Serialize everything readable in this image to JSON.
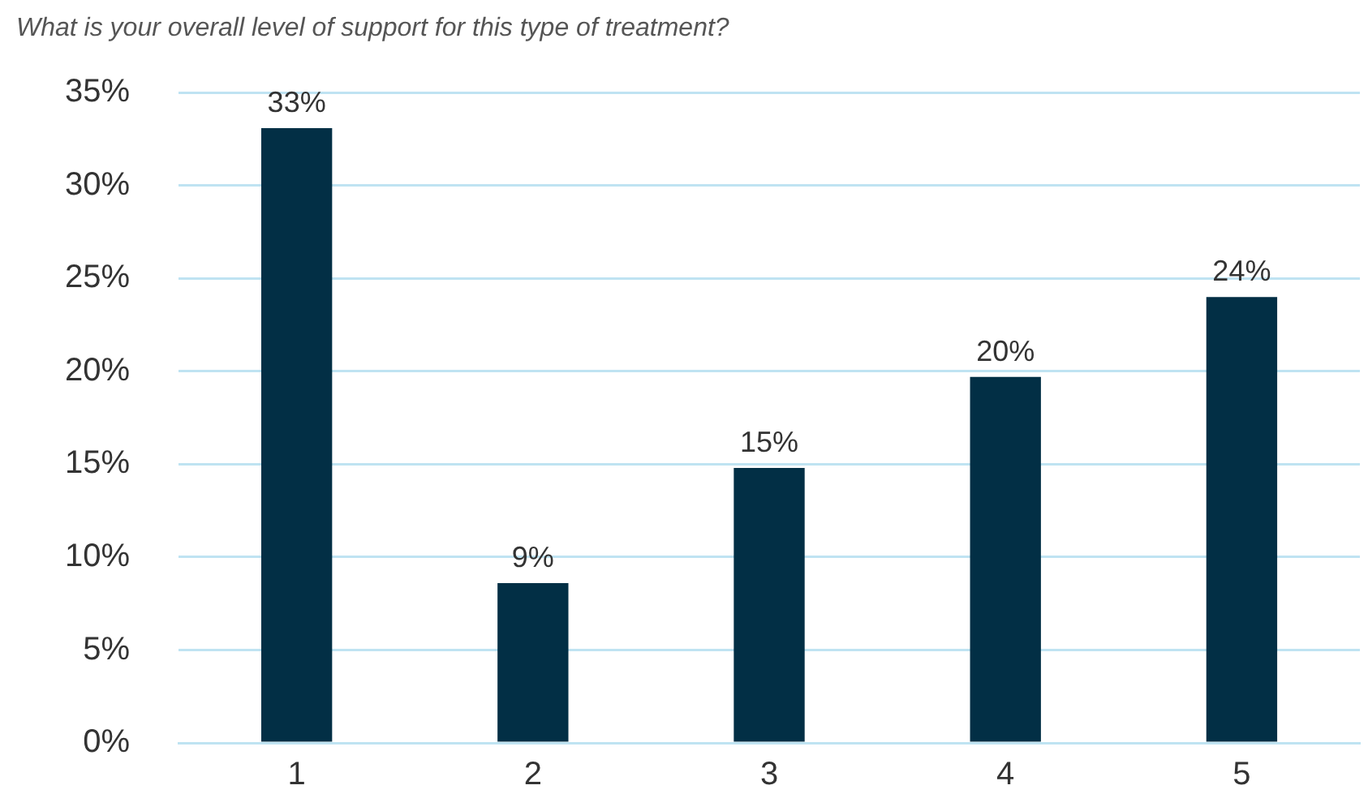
{
  "chart_data": {
    "type": "bar",
    "title": "What is your overall level of support for this type of treatment?",
    "categories": [
      "1",
      "2",
      "3",
      "4",
      "5"
    ],
    "values": [
      33.1,
      8.6,
      14.8,
      19.7,
      24
    ],
    "value_labels": [
      "33%",
      "9%",
      "15%",
      "20%",
      "24%"
    ],
    "color": "#022f45",
    "ylim": [
      0,
      35
    ],
    "yticks": [
      {
        "value": 0,
        "label": "0%"
      },
      {
        "value": 5,
        "label": "5%"
      },
      {
        "value": 10,
        "label": "10%"
      },
      {
        "value": 15,
        "label": "15%"
      },
      {
        "value": 20,
        "label": "20%"
      },
      {
        "value": 25,
        "label": "25%"
      },
      {
        "value": 30,
        "label": "30%"
      },
      {
        "value": 35,
        "label": "35%"
      }
    ],
    "grid": "y"
  }
}
